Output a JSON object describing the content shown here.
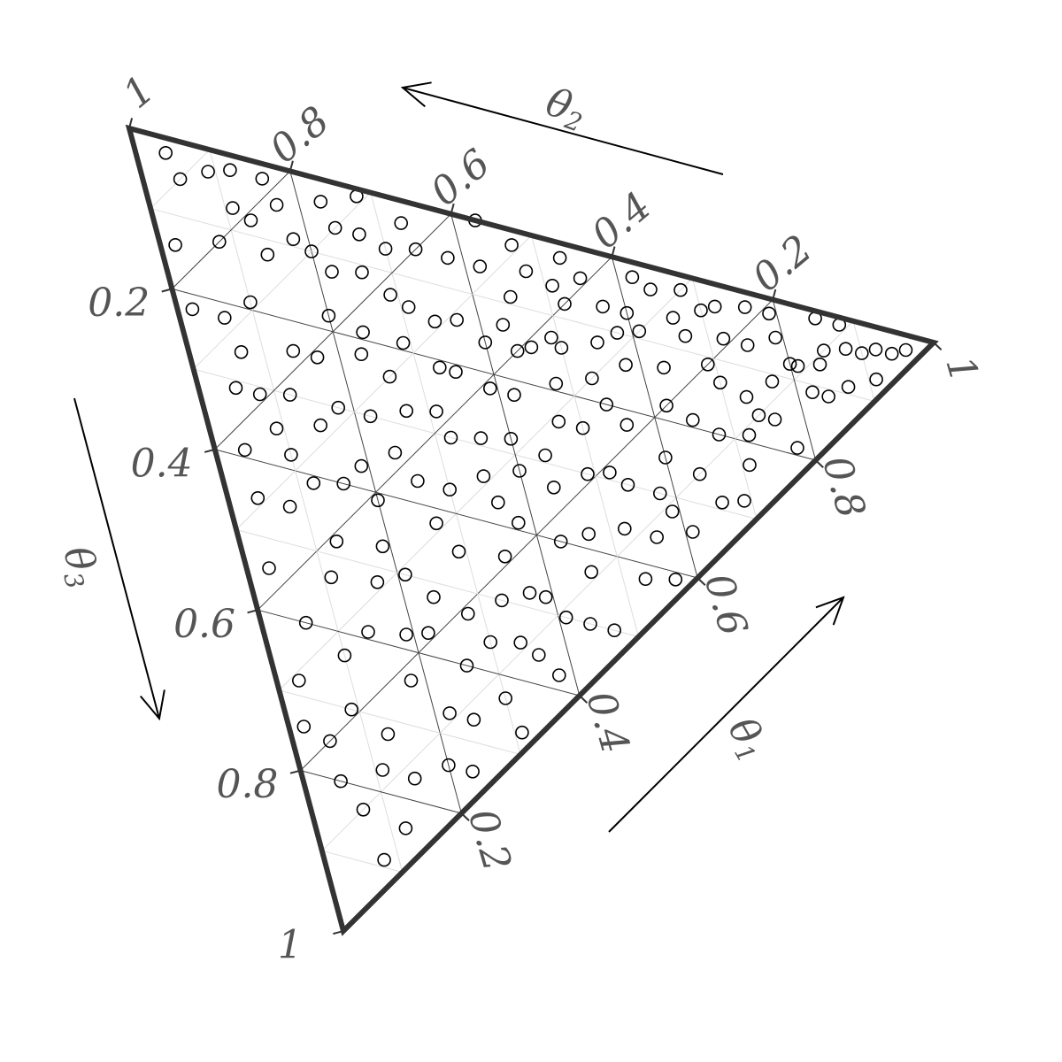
{
  "chart_data": {
    "type": "scatter",
    "subtype": "ternary",
    "grid": true,
    "axes": [
      {
        "name": "θ1",
        "name_base": "θ",
        "name_sub": "1",
        "ticks": [
          "0.2",
          "0.4",
          "0.6",
          "0.8",
          "1"
        ]
      },
      {
        "name": "θ2",
        "name_base": "θ",
        "name_sub": "2",
        "ticks": [
          "0.2",
          "0.4",
          "0.6",
          "0.8",
          "1"
        ]
      },
      {
        "name": "θ3",
        "name_base": "θ",
        "name_sub": "3",
        "ticks": [
          "0.2",
          "0.4",
          "0.6",
          "0.8",
          "1"
        ]
      }
    ],
    "points": [
      [
        0.04,
        0.94,
        0.02
      ],
      [
        0.05,
        0.9,
        0.05
      ],
      [
        0.09,
        0.88,
        0.03
      ],
      [
        0.12,
        0.86,
        0.02
      ],
      [
        0.11,
        0.82,
        0.07
      ],
      [
        0.17,
        0.78,
        0.05
      ],
      [
        0.02,
        0.84,
        0.14
      ],
      [
        0.14,
        0.74,
        0.12
      ],
      [
        0.18,
        0.73,
        0.09
      ],
      [
        0.24,
        0.7,
        0.06
      ],
      [
        0.27,
        0.67,
        0.06
      ],
      [
        0.3,
        0.63,
        0.07
      ],
      [
        0.22,
        0.66,
        0.12
      ],
      [
        0.1,
        0.71,
        0.19
      ],
      [
        0.06,
        0.72,
        0.22
      ],
      [
        0.34,
        0.6,
        0.06
      ],
      [
        0.38,
        0.56,
        0.06
      ],
      [
        0.42,
        0.52,
        0.06
      ],
      [
        0.48,
        0.47,
        0.05
      ],
      [
        0.55,
        0.41,
        0.04
      ],
      [
        0.62,
        0.36,
        0.02
      ],
      [
        0.7,
        0.26,
        0.04
      ],
      [
        0.76,
        0.22,
        0.02
      ],
      [
        0.85,
        0.14,
        0.01
      ],
      [
        0.92,
        0.05,
        0.03
      ],
      [
        0.96,
        0.02,
        0.02
      ],
      [
        0.2,
        0.62,
        0.18
      ],
      [
        0.29,
        0.58,
        0.13
      ],
      [
        0.24,
        0.57,
        0.19
      ],
      [
        0.14,
        0.62,
        0.24
      ],
      [
        0.12,
        0.58,
        0.3
      ],
      [
        0.05,
        0.64,
        0.31
      ],
      [
        0.04,
        0.57,
        0.39
      ],
      [
        0.1,
        0.52,
        0.38
      ],
      [
        0.18,
        0.52,
        0.3
      ],
      [
        0.26,
        0.5,
        0.24
      ],
      [
        0.34,
        0.51,
        0.15
      ],
      [
        0.33,
        0.46,
        0.21
      ],
      [
        0.4,
        0.44,
        0.16
      ],
      [
        0.44,
        0.4,
        0.16
      ],
      [
        0.49,
        0.38,
        0.13
      ],
      [
        0.55,
        0.33,
        0.12
      ],
      [
        0.61,
        0.3,
        0.09
      ],
      [
        0.67,
        0.25,
        0.08
      ],
      [
        0.72,
        0.21,
        0.07
      ],
      [
        0.79,
        0.16,
        0.05
      ],
      [
        0.85,
        0.1,
        0.05
      ],
      [
        0.81,
        0.11,
        0.08
      ],
      [
        0.7,
        0.17,
        0.13
      ],
      [
        0.62,
        0.2,
        0.18
      ],
      [
        0.54,
        0.26,
        0.2
      ],
      [
        0.47,
        0.29,
        0.24
      ],
      [
        0.4,
        0.32,
        0.28
      ],
      [
        0.32,
        0.38,
        0.3
      ],
      [
        0.24,
        0.42,
        0.34
      ],
      [
        0.16,
        0.44,
        0.4
      ],
      [
        0.08,
        0.47,
        0.45
      ],
      [
        0.03,
        0.43,
        0.54
      ],
      [
        0.11,
        0.36,
        0.53
      ],
      [
        0.19,
        0.34,
        0.47
      ],
      [
        0.27,
        0.31,
        0.42
      ],
      [
        0.36,
        0.27,
        0.37
      ],
      [
        0.44,
        0.23,
        0.33
      ],
      [
        0.52,
        0.19,
        0.29
      ],
      [
        0.6,
        0.15,
        0.25
      ],
      [
        0.68,
        0.12,
        0.2
      ],
      [
        0.76,
        0.08,
        0.16
      ],
      [
        0.84,
        0.05,
        0.11
      ],
      [
        0.78,
        0.03,
        0.19
      ],
      [
        0.66,
        0.05,
        0.29
      ],
      [
        0.56,
        0.08,
        0.36
      ],
      [
        0.46,
        0.11,
        0.43
      ],
      [
        0.37,
        0.15,
        0.48
      ],
      [
        0.28,
        0.19,
        0.53
      ],
      [
        0.19,
        0.23,
        0.58
      ],
      [
        0.1,
        0.27,
        0.63
      ],
      [
        0.05,
        0.2,
        0.75
      ],
      [
        0.13,
        0.15,
        0.72
      ],
      [
        0.22,
        0.11,
        0.67
      ],
      [
        0.3,
        0.07,
        0.63
      ],
      [
        0.38,
        0.04,
        0.58
      ],
      [
        0.47,
        0.03,
        0.5
      ],
      [
        0.57,
        0.02,
        0.41
      ],
      [
        0.15,
        0.08,
        0.77
      ],
      [
        0.07,
        0.1,
        0.83
      ],
      [
        0.08,
        0.03,
        0.89
      ],
      [
        0.12,
        0.04,
        0.84
      ],
      [
        0.23,
        0.03,
        0.74
      ],
      [
        0.31,
        0.02,
        0.67
      ],
      [
        0.26,
        0.14,
        0.6
      ],
      [
        0.35,
        0.21,
        0.44
      ],
      [
        0.43,
        0.17,
        0.4
      ],
      [
        0.5,
        0.26,
        0.24
      ],
      [
        0.58,
        0.28,
        0.14
      ],
      [
        0.64,
        0.33,
        0.03
      ],
      [
        0.45,
        0.46,
        0.09
      ],
      [
        0.36,
        0.35,
        0.29
      ],
      [
        0.29,
        0.26,
        0.45
      ],
      [
        0.21,
        0.29,
        0.5
      ],
      [
        0.41,
        0.09,
        0.5
      ],
      [
        0.52,
        0.12,
        0.36
      ],
      [
        0.59,
        0.09,
        0.32
      ],
      [
        0.71,
        0.06,
        0.23
      ],
      [
        0.73,
        0.13,
        0.14
      ],
      [
        0.8,
        0.12,
        0.08
      ],
      [
        0.88,
        0.08,
        0.04
      ],
      [
        0.91,
        0.02,
        0.07
      ],
      [
        0.68,
        0.3,
        0.02
      ],
      [
        0.57,
        0.36,
        0.07
      ],
      [
        0.51,
        0.43,
        0.06
      ],
      [
        0.46,
        0.39,
        0.15
      ],
      [
        0.39,
        0.39,
        0.22
      ],
      [
        0.31,
        0.42,
        0.27
      ],
      [
        0.27,
        0.45,
        0.28
      ],
      [
        0.22,
        0.48,
        0.3
      ],
      [
        0.15,
        0.52,
        0.33
      ],
      [
        0.09,
        0.56,
        0.35
      ],
      [
        0.07,
        0.67,
        0.26
      ],
      [
        0.02,
        0.76,
        0.22
      ],
      [
        0.08,
        0.8,
        0.12
      ],
      [
        0.2,
        0.7,
        0.1
      ],
      [
        0.26,
        0.63,
        0.11
      ],
      [
        0.31,
        0.55,
        0.14
      ],
      [
        0.37,
        0.49,
        0.14
      ],
      [
        0.42,
        0.36,
        0.22
      ],
      [
        0.48,
        0.33,
        0.19
      ],
      [
        0.53,
        0.3,
        0.17
      ],
      [
        0.56,
        0.22,
        0.22
      ],
      [
        0.49,
        0.21,
        0.3
      ],
      [
        0.44,
        0.27,
        0.29
      ],
      [
        0.38,
        0.23,
        0.39
      ],
      [
        0.33,
        0.17,
        0.5
      ],
      [
        0.24,
        0.24,
        0.52
      ],
      [
        0.17,
        0.31,
        0.52
      ],
      [
        0.13,
        0.39,
        0.48
      ],
      [
        0.06,
        0.34,
        0.6
      ],
      [
        0.03,
        0.29,
        0.68
      ],
      [
        0.09,
        0.21,
        0.7
      ],
      [
        0.18,
        0.18,
        0.64
      ],
      [
        0.25,
        0.08,
        0.67
      ],
      [
        0.34,
        0.11,
        0.55
      ],
      [
        0.61,
        0.05,
        0.34
      ],
      [
        0.65,
        0.16,
        0.19
      ],
      [
        0.75,
        0.18,
        0.07
      ],
      [
        0.82,
        0.07,
        0.11
      ],
      [
        0.87,
        0.04,
        0.09
      ],
      [
        0.94,
        0.03,
        0.03
      ],
      [
        0.43,
        0.57,
        0.0
      ],
      [
        0.33,
        0.64,
        0.03
      ],
      [
        0.16,
        0.82,
        0.02
      ],
      [
        0.13,
        0.79,
        0.08
      ],
      [
        0.23,
        0.74,
        0.03
      ],
      [
        0.28,
        0.71,
        0.01
      ],
      [
        0.47,
        0.51,
        0.02
      ],
      [
        0.53,
        0.45,
        0.02
      ],
      [
        0.6,
        0.33,
        0.07
      ],
      [
        0.63,
        0.24,
        0.13
      ],
      [
        0.69,
        0.2,
        0.11
      ],
      [
        0.74,
        0.1,
        0.16
      ],
      [
        0.69,
        0.03,
        0.28
      ],
      [
        0.53,
        0.05,
        0.42
      ],
      [
        0.44,
        0.06,
        0.5
      ],
      [
        0.36,
        0.08,
        0.56
      ],
      [
        0.2,
        0.06,
        0.74
      ],
      [
        0.11,
        0.12,
        0.77
      ],
      [
        0.05,
        0.15,
        0.8
      ],
      [
        0.02,
        0.24,
        0.74
      ],
      [
        0.14,
        0.27,
        0.59
      ],
      [
        0.22,
        0.21,
        0.57
      ],
      [
        0.3,
        0.14,
        0.56
      ],
      [
        0.39,
        0.13,
        0.48
      ],
      [
        0.47,
        0.15,
        0.38
      ],
      [
        0.54,
        0.16,
        0.3
      ],
      [
        0.58,
        0.12,
        0.3
      ],
      [
        0.64,
        0.1,
        0.26
      ],
      [
        0.72,
        0.09,
        0.19
      ],
      [
        0.77,
        0.12,
        0.11
      ],
      [
        0.84,
        0.09,
        0.07
      ],
      [
        0.4,
        0.28,
        0.32
      ],
      [
        0.35,
        0.31,
        0.34
      ],
      [
        0.3,
        0.33,
        0.37
      ],
      [
        0.26,
        0.37,
        0.37
      ],
      [
        0.2,
        0.39,
        0.41
      ],
      [
        0.19,
        0.44,
        0.37
      ],
      [
        0.12,
        0.47,
        0.41
      ],
      [
        0.04,
        0.51,
        0.45
      ],
      [
        0.08,
        0.61,
        0.31
      ],
      [
        0.17,
        0.59,
        0.24
      ],
      [
        0.23,
        0.55,
        0.22
      ],
      [
        0.29,
        0.52,
        0.19
      ],
      [
        0.35,
        0.44,
        0.21
      ],
      [
        0.43,
        0.44,
        0.13
      ],
      [
        0.5,
        0.36,
        0.14
      ],
      [
        0.52,
        0.4,
        0.08
      ],
      [
        0.58,
        0.32,
        0.1
      ],
      [
        0.66,
        0.28,
        0.06
      ],
      [
        0.72,
        0.25,
        0.03
      ],
      [
        0.79,
        0.19,
        0.02
      ],
      [
        0.88,
        0.11,
        0.01
      ],
      [
        0.9,
        0.06,
        0.04
      ]
    ]
  }
}
